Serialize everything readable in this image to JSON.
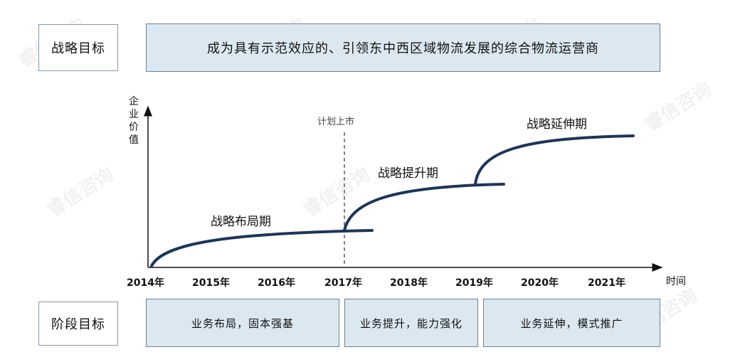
{
  "strategy": {
    "label": "战略目标",
    "goal": "成为具有示范效应的、引领东中西区域物流发展的综合物流运营商"
  },
  "chart": {
    "y_axis_label": [
      "企",
      "业",
      "价",
      "值"
    ],
    "x_axis_label": "时间",
    "years": [
      "2014年",
      "2015年",
      "2016年",
      "2017年",
      "2018年",
      "2019年",
      "2020年",
      "2021年"
    ],
    "ipo_marker": "计划上市",
    "phases": [
      "战略布局期",
      "战略提升期",
      "战略延伸期"
    ]
  },
  "stages": {
    "label": "阶段目标",
    "items": [
      "业务布局，固本强基",
      "业务提升，能力强化",
      "业务延伸，模式推广"
    ]
  },
  "watermark": "睿信咨询",
  "colors": {
    "curve": "#1f3556",
    "panel_fill": "#dbe8f1",
    "panel_border": "#6e8294"
  }
}
